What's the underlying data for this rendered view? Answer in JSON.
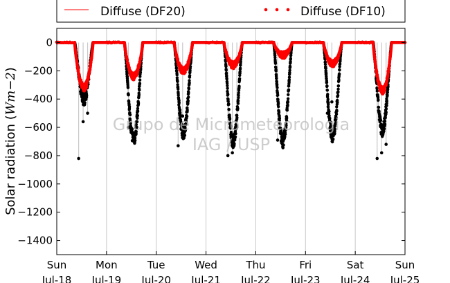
{
  "chart_data": {
    "type": "scatter",
    "title": "",
    "ylabel": "Solar radiation ($Wm-2$)",
    "ylabel_plain": "Solar radiation (",
    "ylabel_math": "Wm−2",
    "ylabel_close": ")",
    "ylim": [
      -1500,
      100
    ],
    "yticks": [
      0,
      -200,
      -400,
      -600,
      -800,
      -1000,
      -1200,
      -1400
    ],
    "ytick_labels": [
      "0",
      "−200",
      "−400",
      "−600",
      "−800",
      "−1000",
      "−1200",
      "−1400"
    ],
    "xlim": [
      "2016-07-18",
      "2016-07-25"
    ],
    "xticks": [
      {
        "day": "Sun",
        "date": "Jul-18"
      },
      {
        "day": "Mon",
        "date": "Jul-19"
      },
      {
        "day": "Tue",
        "date": "Jul-20"
      },
      {
        "day": "Wed",
        "date": "Jul-21"
      },
      {
        "day": "Thu",
        "date": "Jul-22"
      },
      {
        "day": "Fri",
        "date": "Jul-23"
      },
      {
        "day": "Sat",
        "date": "Jul-24"
      },
      {
        "day": "Sun",
        "date": "Jul-25"
      }
    ],
    "grid": "vertical",
    "legend": {
      "placement": "top",
      "entries": [
        "Diffuse (DF20)",
        "Diffuse (DF10)"
      ]
    },
    "watermark": [
      "Grupo de Micrometeorologia",
      "IAG / USP"
    ],
    "series": [
      {
        "name": "Diffuse (DF20)",
        "color": "#ff0000",
        "style": "line"
      },
      {
        "name": "Diffuse (DF10)",
        "color": "#ff0000",
        "style": "dots"
      },
      {
        "color": "#000000",
        "style": "dots-with-gray-line"
      }
    ],
    "days": [
      {
        "dip_black": -400,
        "black_spikes": [
          -820,
          -560,
          -500
        ],
        "dip_red": -320
      },
      {
        "dip_black": -685,
        "black_spikes": [
          -600
        ],
        "dip_red": -240
      },
      {
        "dip_black": -640,
        "black_spikes": [
          -730,
          -520
        ],
        "dip_red": -200
      },
      {
        "dip_black": -700,
        "black_spikes": [
          -800,
          -780,
          -600
        ],
        "dip_red": -160
      },
      {
        "dip_black": -700,
        "black_spikes": [
          -690
        ],
        "dip_red": -90
      },
      {
        "dip_black": -660,
        "black_spikes": [
          -500,
          -420
        ],
        "dip_red": -150
      },
      {
        "dip_black": -620,
        "black_spikes": [
          -820,
          -780,
          -720
        ],
        "dip_red": -340
      }
    ]
  }
}
